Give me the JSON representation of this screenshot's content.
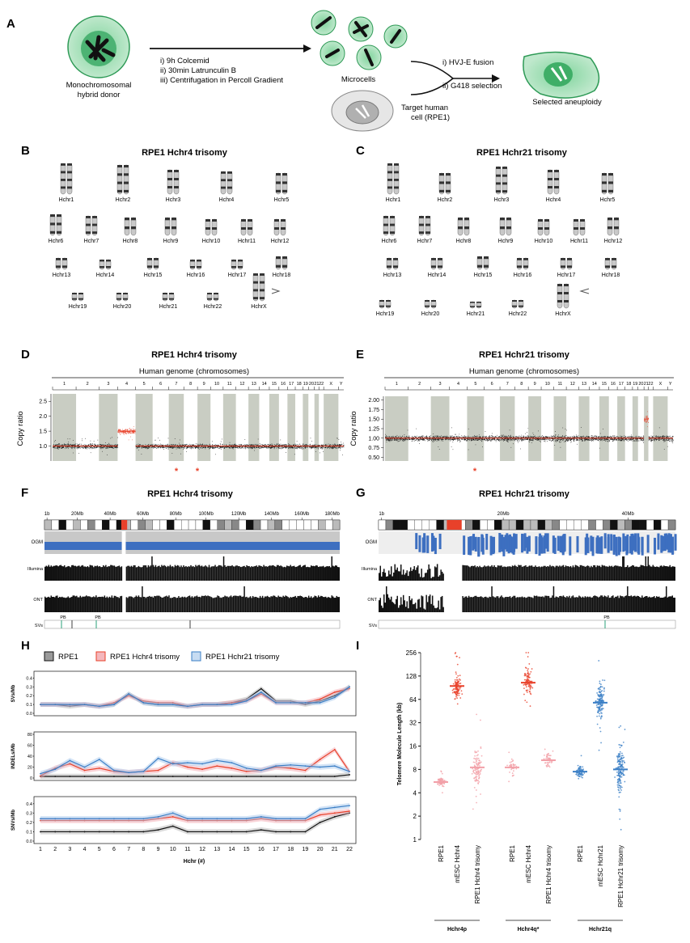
{
  "panels": {
    "A": {
      "label": "A",
      "donor": "Monochromosomal\nhybrid donor",
      "steps": [
        "i)  9h Colcemid",
        "ii)  30min Latrunculin B",
        "iii) Centrifugation in Percoll Gradient"
      ],
      "microcells": "Microcells",
      "target": "Target human\ncell (RPE1)",
      "fusion_steps": [
        "i) HVJ-E fusion",
        "ii) G418 selection"
      ],
      "selected": "Selected aneuploidy"
    },
    "B": {
      "label": "B",
      "title": "RPE1 Hchr4 trisomy",
      "chromosomes": [
        "Hchr1",
        "Hchr2",
        "Hchr3",
        "Hchr4",
        "Hchr5",
        "Hchr6",
        "Hchr7",
        "Hchr8",
        "Hchr9",
        "Hchr10",
        "Hchr11",
        "Hchr12",
        "Hchr13",
        "Hchr14",
        "Hchr15",
        "Hchr16",
        "Hchr17",
        "Hchr18",
        "Hchr19",
        "Hchr20",
        "Hchr21",
        "Hchr22",
        "HchrX"
      ]
    },
    "C": {
      "label": "C",
      "title": "RPE1 Hchr21 trisomy",
      "chromosomes": [
        "Hchr1",
        "Hchr2",
        "Hchr3",
        "Hchr4",
        "Hchr5",
        "Hchr6",
        "Hchr7",
        "Hchr8",
        "Hchr9",
        "Hchr10",
        "Hchr11",
        "Hchr12",
        "Hchr13",
        "Hchr14",
        "Hchr15",
        "Hchr16",
        "Hchr17",
        "Hchr18",
        "Hchr19",
        "Hchr20",
        "Hchr21",
        "Hchr22",
        "HchrX"
      ]
    },
    "D": {
      "label": "D",
      "title": "RPE1 Hchr4 trisomy",
      "subtitle": "Human genome (chromosomes)",
      "ylabel": "Copy ratio",
      "yticks": [
        "2.5",
        "2.0",
        "1.5",
        "1.0"
      ],
      "chrom_labels": [
        "1",
        "2",
        "3",
        "4",
        "5",
        "6",
        "7",
        "8",
        "9",
        "10",
        "11",
        "12",
        "13",
        "14",
        "15",
        "16",
        "17",
        "18",
        "19",
        "20",
        "21",
        "22",
        "X",
        "Y"
      ]
    },
    "E": {
      "label": "E",
      "title": "RPE1 Hchr21 trisomy",
      "subtitle": "Human genome (chromosomes)",
      "ylabel": "Copy ratio",
      "yticks": [
        "2.00",
        "1.75",
        "1.50",
        "1.25",
        "1.00",
        "0.75",
        "0.50"
      ],
      "chrom_labels": [
        "1",
        "2",
        "3",
        "4",
        "5",
        "6",
        "7",
        "8",
        "9",
        "10",
        "11",
        "12",
        "13",
        "14",
        "15",
        "16",
        "17",
        "18",
        "19",
        "20",
        "21",
        "22",
        "X",
        "Y"
      ]
    },
    "F": {
      "label": "F",
      "title": "RPE1 Hchr4 trisomy",
      "axis_ticks": [
        "1b",
        "20Mb",
        "40Mb",
        "60Mb",
        "80Mb",
        "100Mb",
        "120Mb",
        "140Mb",
        "160Mb",
        "180Mb"
      ],
      "tracks": [
        "OGM",
        "Illumina",
        "ONT",
        "SVs"
      ],
      "sv_marks": [
        "PB",
        "PB"
      ]
    },
    "G": {
      "label": "G",
      "title": "RPE1 Hchr21 trisomy",
      "axis_ticks": [
        "1b",
        "20Mb",
        "40Mb"
      ],
      "tracks": [
        "OGM",
        "Illumina",
        "ONT",
        "SVs"
      ],
      "sv_marks": [
        "PB"
      ]
    },
    "H": {
      "label": "H",
      "legend": [
        "RPE1",
        "RPE1 Hchr4 trisomy",
        "RPE1 Hchr21 trisomy"
      ],
      "xlabel": "Hchr (#)",
      "xticks": [
        "1",
        "2",
        "3",
        "4",
        "5",
        "6",
        "7",
        "8",
        "9",
        "10",
        "11",
        "12",
        "13",
        "14",
        "15",
        "16",
        "17",
        "18",
        "19",
        "20",
        "21",
        "22"
      ],
      "subplots": [
        {
          "ylabel": "SVs/Mb",
          "yticks": [
            "0.4",
            "0.3",
            "0.2",
            "0.1",
            "0.0"
          ]
        },
        {
          "ylabel": "INDELs/Mb",
          "yticks": [
            "80",
            "60",
            "40",
            "20",
            "0"
          ]
        },
        {
          "ylabel": "SNVs/Mb",
          "yticks": [
            "0.4",
            "0.3",
            "0.2",
            "0.1",
            "0.0"
          ]
        }
      ]
    },
    "I": {
      "label": "I",
      "ylabel": "Telomere Molecule Length (kb)",
      "yticks": [
        "256",
        "128",
        "64",
        "32",
        "16",
        "8",
        "4",
        "2",
        "1"
      ],
      "groups": [
        {
          "name": "Hchr4p",
          "samples": [
            "RPE1",
            "mESC Hchr4",
            "RPE1 Hchr4 trisomy"
          ]
        },
        {
          "name": "Hchr4q*",
          "samples": [
            "RPE1",
            "mESC Hchr4",
            "RPE1 Hchr4 trisomy"
          ]
        },
        {
          "name": "Hchr21q",
          "samples": [
            "RPE1",
            "mESC Hchr21",
            "RPE1 Hchr21 trisomy"
          ]
        }
      ]
    }
  },
  "chart_data": [
    {
      "type": "line",
      "title": "SVs/Mb",
      "x": [
        1,
        2,
        3,
        4,
        5,
        6,
        7,
        8,
        9,
        10,
        11,
        12,
        13,
        14,
        15,
        16,
        17,
        18,
        19,
        20,
        21,
        22
      ],
      "ylim": [
        0,
        0.45
      ],
      "series": [
        {
          "name": "RPE1",
          "values": [
            0.1,
            0.1,
            0.08,
            0.1,
            0.08,
            0.1,
            0.22,
            0.12,
            0.1,
            0.1,
            0.08,
            0.1,
            0.1,
            0.12,
            0.16,
            0.28,
            0.14,
            0.14,
            0.1,
            0.14,
            0.2,
            0.3
          ]
        },
        {
          "name": "RPE1 Hchr4 trisomy",
          "values": [
            0.1,
            0.1,
            0.1,
            0.1,
            0.08,
            0.12,
            0.2,
            0.14,
            0.12,
            0.12,
            0.08,
            0.1,
            0.1,
            0.12,
            0.14,
            0.22,
            0.12,
            0.12,
            0.12,
            0.16,
            0.24,
            0.28
          ]
        },
        {
          "name": "RPE1 Hchr21 trisomy",
          "values": [
            0.1,
            0.1,
            0.1,
            0.1,
            0.08,
            0.1,
            0.22,
            0.12,
            0.1,
            0.1,
            0.08,
            0.1,
            0.1,
            0.1,
            0.14,
            0.24,
            0.12,
            0.12,
            0.12,
            0.12,
            0.18,
            0.3
          ]
        }
      ]
    },
    {
      "type": "line",
      "title": "INDELs/Mb",
      "x": [
        1,
        2,
        3,
        4,
        5,
        6,
        7,
        8,
        9,
        10,
        11,
        12,
        13,
        14,
        15,
        16,
        17,
        18,
        19,
        20,
        21,
        22
      ],
      "ylim": [
        0,
        80
      ],
      "series": [
        {
          "name": "RPE1",
          "values": [
            3,
            3,
            3,
            3,
            3,
            3,
            3,
            3,
            3,
            3,
            3,
            3,
            3,
            3,
            3,
            3,
            3,
            3,
            3,
            3,
            3,
            6
          ]
        },
        {
          "name": "RPE1 Hchr4 trisomy",
          "values": [
            4,
            18,
            26,
            14,
            18,
            12,
            10,
            12,
            14,
            28,
            20,
            16,
            22,
            18,
            12,
            14,
            20,
            18,
            14,
            34,
            52,
            12
          ]
        },
        {
          "name": "RPE1 Hchr21 trisomy",
          "values": [
            8,
            16,
            32,
            20,
            34,
            14,
            10,
            12,
            36,
            26,
            28,
            26,
            32,
            28,
            18,
            14,
            22,
            24,
            22,
            20,
            22,
            12
          ]
        }
      ]
    },
    {
      "type": "line",
      "title": "SNVs/Mb",
      "x": [
        1,
        2,
        3,
        4,
        5,
        6,
        7,
        8,
        9,
        10,
        11,
        12,
        13,
        14,
        15,
        16,
        17,
        18,
        19,
        20,
        21,
        22
      ],
      "ylim": [
        0,
        0.45
      ],
      "series": [
        {
          "name": "RPE1",
          "values": [
            0.1,
            0.1,
            0.1,
            0.1,
            0.1,
            0.1,
            0.1,
            0.1,
            0.12,
            0.16,
            0.1,
            0.1,
            0.1,
            0.1,
            0.1,
            0.12,
            0.1,
            0.1,
            0.1,
            0.2,
            0.26,
            0.3
          ]
        },
        {
          "name": "RPE1 Hchr4 trisomy",
          "values": [
            0.22,
            0.22,
            0.22,
            0.22,
            0.22,
            0.22,
            0.22,
            0.22,
            0.24,
            0.26,
            0.22,
            0.22,
            0.22,
            0.22,
            0.22,
            0.24,
            0.22,
            0.22,
            0.22,
            0.28,
            0.3,
            0.32
          ]
        },
        {
          "name": "RPE1 Hchr21 trisomy",
          "values": [
            0.24,
            0.24,
            0.24,
            0.24,
            0.24,
            0.24,
            0.24,
            0.24,
            0.26,
            0.3,
            0.24,
            0.24,
            0.24,
            0.24,
            0.24,
            0.26,
            0.24,
            0.24,
            0.24,
            0.34,
            0.36,
            0.38
          ]
        }
      ]
    },
    {
      "type": "scatter",
      "title": "Telomere Molecule Length (kb)",
      "categories": [
        "RPE1",
        "mESC Hchr4",
        "RPE1 Hchr4 trisomy",
        "RPE1",
        "mESC Hchr4",
        "RPE1 Hchr4 trisomy",
        "RPE1",
        "mESC Hchr21",
        "RPE1 Hchr21 trisomy"
      ],
      "medians_kb": [
        5.5,
        95,
        8.5,
        8.5,
        105,
        10.5,
        7.5,
        58,
        8
      ],
      "ylim": [
        1,
        256
      ]
    }
  ],
  "colors": {
    "red": "#e8412a",
    "pink": "#f2a0a8",
    "blue": "#3b7fc6",
    "grey_band": "#c9cdc3",
    "ogm_blue": "#3d6fc0"
  }
}
